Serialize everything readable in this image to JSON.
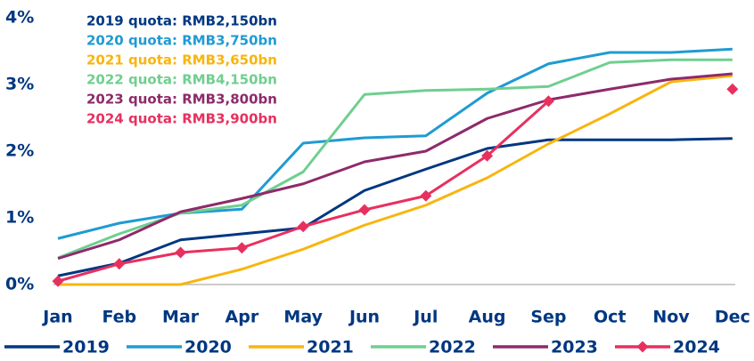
{
  "chart_data": {
    "type": "line",
    "categories": [
      "Jan",
      "Feb",
      "Mar",
      "Apr",
      "May",
      "Jun",
      "Jul",
      "Aug",
      "Sep",
      "Oct",
      "Nov",
      "Dec"
    ],
    "series": [
      {
        "name": "2019",
        "color": "#003781",
        "values": [
          0.13,
          0.32,
          0.67,
          0.76,
          0.85,
          1.41,
          1.73,
          2.04,
          2.17,
          2.17,
          2.17,
          2.19
        ]
      },
      {
        "name": "2020",
        "color": "#1f9bd3",
        "values": [
          0.69,
          0.92,
          1.07,
          1.13,
          2.12,
          2.2,
          2.23,
          2.87,
          3.31,
          3.48,
          3.48,
          3.53
        ]
      },
      {
        "name": "2021",
        "color": "#f8b50e",
        "values": [
          0,
          0,
          0,
          0.23,
          0.53,
          0.89,
          1.19,
          1.6,
          2.11,
          2.56,
          3.04,
          3.13
        ]
      },
      {
        "name": "2022",
        "color": "#6fcf8f",
        "values": [
          0.4,
          0.76,
          1.07,
          1.19,
          1.69,
          2.85,
          2.91,
          2.93,
          2.97,
          3.33,
          3.37,
          3.37
        ]
      },
      {
        "name": "2023",
        "color": "#8e2a6b",
        "values": [
          0.39,
          0.67,
          1.09,
          1.29,
          1.51,
          1.84,
          2.0,
          2.49,
          2.77,
          2.93,
          3.08,
          3.16
        ]
      },
      {
        "name": "2024",
        "color": "#e8305f",
        "marker": "diamond",
        "values": [
          0.05,
          0.31,
          0.48,
          0.55,
          0.87,
          1.12,
          1.33,
          1.93,
          2.75,
          null,
          null,
          2.93
        ]
      }
    ],
    "ylim": [
      0,
      4
    ],
    "yticks": [
      {
        "value": 0,
        "label": "0%"
      },
      {
        "value": 1,
        "label": "1%"
      },
      {
        "value": 2,
        "label": "2%"
      },
      {
        "value": 3,
        "label": "3%"
      },
      {
        "value": 4,
        "label": "4%"
      }
    ],
    "annotations": [
      {
        "text": "2019 quota: RMB2,150bn",
        "color": "#003781"
      },
      {
        "text": "2020 quota: RMB3,750bn",
        "color": "#1f9bd3"
      },
      {
        "text": "2021 quota: RMB3,650bn",
        "color": "#f8b50e"
      },
      {
        "text": "2022 quota: RMB4,150bn",
        "color": "#6fcf8f"
      },
      {
        "text": "2023 quota: RMB3,800bn",
        "color": "#8e2a6b"
      },
      {
        "text": "2024 quota: RMB3,900bn",
        "color": "#e8305f"
      }
    ],
    "legend": "bottom"
  }
}
